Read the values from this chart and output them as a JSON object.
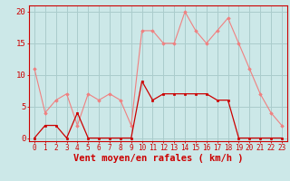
{
  "hours": [
    0,
    1,
    2,
    3,
    4,
    5,
    6,
    7,
    8,
    9,
    10,
    11,
    12,
    13,
    14,
    15,
    16,
    17,
    18,
    19,
    20,
    21,
    22,
    23
  ],
  "rafales": [
    11,
    4,
    6,
    7,
    2,
    7,
    6,
    7,
    6,
    2,
    17,
    17,
    15,
    15,
    20,
    17,
    15,
    17,
    19,
    15,
    11,
    7,
    4,
    2
  ],
  "moyen": [
    0,
    2,
    2,
    0,
    4,
    0,
    0,
    0,
    0,
    0,
    9,
    6,
    7,
    7,
    7,
    7,
    7,
    6,
    6,
    0,
    0,
    0,
    0,
    0
  ],
  "bg_color": "#cce8e8",
  "grid_color": "#aacccc",
  "rafales_color": "#f08080",
  "moyen_color": "#cc0000",
  "axis_label_color": "#cc0000",
  "xlabel": "Vent moyen/en rafales ( km/h )",
  "ylim": [
    -0.5,
    21
  ],
  "xlim": [
    -0.5,
    23.5
  ],
  "yticks": [
    0,
    5,
    10,
    15,
    20
  ],
  "xticks": [
    0,
    1,
    2,
    3,
    4,
    5,
    6,
    7,
    8,
    9,
    10,
    11,
    12,
    13,
    14,
    15,
    16,
    17,
    18,
    19,
    20,
    21,
    22,
    23
  ],
  "xlabel_fontsize": 7.5,
  "tick_fontsize": 5.5,
  "ytick_fontsize": 6.5
}
